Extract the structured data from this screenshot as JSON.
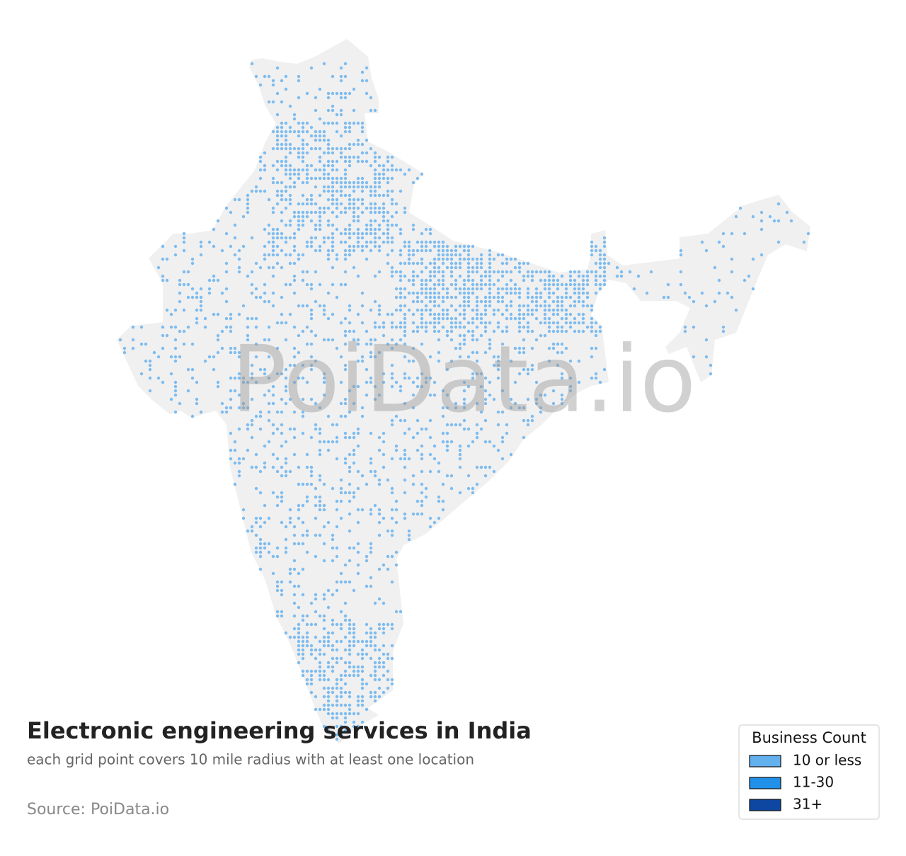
{
  "header": {
    "title": "Electronic engineering services in India",
    "subtitle": "each grid point covers 10 mile radius with at least one location",
    "source": "Source: PoiData.io"
  },
  "watermark": "PoiData.io",
  "map": {
    "land_color": "#f0f0f0",
    "dot_color": "#7dbcf0"
  },
  "legend": {
    "title": "Business Count",
    "items": [
      {
        "label": "10 or less",
        "color": "#63b0ee"
      },
      {
        "label": "11-30",
        "color": "#2190e8"
      },
      {
        "label": "31+",
        "color": "#0d47a1"
      }
    ]
  }
}
